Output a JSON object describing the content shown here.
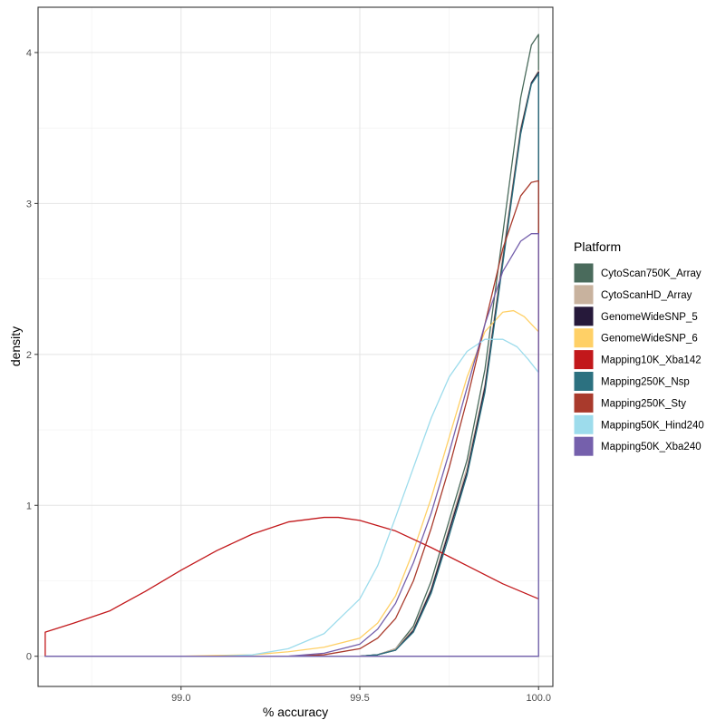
{
  "chart_data": {
    "type": "line",
    "xlabel": "% accuracy",
    "ylabel": "density",
    "xlim": [
      98.6,
      100.04
    ],
    "ylim": [
      -0.2,
      4.3
    ],
    "x_ticks": [
      99.0,
      99.5,
      100.0
    ],
    "x_tick_labels": [
      "99.0",
      "99.5",
      "100.0"
    ],
    "y_ticks": [
      0,
      1,
      2,
      3,
      4
    ],
    "y_tick_labels": [
      "0",
      "1",
      "2",
      "3",
      "4"
    ],
    "grid": true,
    "legend": {
      "title": "Platform",
      "position": "right"
    },
    "series": [
      {
        "name": "CytoScan750K_Array",
        "color": "#4a6b5c",
        "x": [
          98.62,
          99.5,
          99.55,
          99.6,
          99.65,
          99.7,
          99.75,
          99.8,
          99.85,
          99.9,
          99.95,
          99.98,
          100.0
        ],
        "y": [
          0,
          0,
          0.01,
          0.05,
          0.2,
          0.5,
          0.9,
          1.3,
          1.9,
          2.8,
          3.7,
          4.05,
          4.12
        ]
      },
      {
        "name": "CytoScanHD_Array",
        "color": "#c8b29e",
        "x": [
          98.62,
          99.5,
          99.55,
          99.6,
          99.65,
          99.7,
          99.75,
          99.8,
          99.85,
          99.9,
          99.95,
          99.98,
          100.0
        ],
        "y": [
          0,
          0,
          0.01,
          0.05,
          0.18,
          0.45,
          0.85,
          1.25,
          1.8,
          2.65,
          3.5,
          3.8,
          3.88
        ]
      },
      {
        "name": "GenomeWideSNP_5",
        "color": "#26193a",
        "x": [
          98.62,
          99.5,
          99.55,
          99.6,
          99.65,
          99.7,
          99.75,
          99.8,
          99.85,
          99.9,
          99.95,
          99.98,
          100.0
        ],
        "y": [
          0,
          0,
          0.01,
          0.04,
          0.17,
          0.44,
          0.83,
          1.22,
          1.78,
          2.62,
          3.48,
          3.8,
          3.87
        ]
      },
      {
        "name": "GenomeWideSNP_6",
        "color": "#ffd066",
        "x": [
          98.62,
          99.0,
          99.2,
          99.3,
          99.4,
          99.5,
          99.55,
          99.6,
          99.65,
          99.7,
          99.75,
          99.8,
          99.85,
          99.9,
          99.93,
          99.96,
          100.0
        ],
        "y": [
          0,
          0,
          0.01,
          0.03,
          0.06,
          0.12,
          0.22,
          0.4,
          0.7,
          1.05,
          1.45,
          1.85,
          2.15,
          2.28,
          2.29,
          2.25,
          2.15
        ]
      },
      {
        "name": "Mapping10K_Xba142",
        "color": "#c2181b",
        "x": [
          98.62,
          98.7,
          98.8,
          98.9,
          99.0,
          99.1,
          99.2,
          99.3,
          99.4,
          99.44,
          99.5,
          99.6,
          99.7,
          99.8,
          99.9,
          100.0
        ],
        "y": [
          0.16,
          0.22,
          0.3,
          0.43,
          0.57,
          0.7,
          0.81,
          0.89,
          0.92,
          0.92,
          0.9,
          0.83,
          0.72,
          0.6,
          0.48,
          0.38
        ]
      },
      {
        "name": "Mapping250K_Nsp",
        "color": "#2c7180",
        "x": [
          98.62,
          99.5,
          99.55,
          99.6,
          99.65,
          99.7,
          99.75,
          99.8,
          99.85,
          99.9,
          99.95,
          99.98,
          100.0
        ],
        "y": [
          0,
          0,
          0.01,
          0.04,
          0.16,
          0.42,
          0.8,
          1.2,
          1.75,
          2.6,
          3.46,
          3.79,
          3.86
        ]
      },
      {
        "name": "Mapping250K_Sty",
        "color": "#a93a2c",
        "x": [
          98.62,
          99.3,
          99.4,
          99.5,
          99.55,
          99.6,
          99.65,
          99.7,
          99.75,
          99.8,
          99.85,
          99.9,
          99.95,
          99.98,
          100.0
        ],
        "y": [
          0,
          0,
          0.01,
          0.05,
          0.12,
          0.25,
          0.5,
          0.85,
          1.25,
          1.7,
          2.2,
          2.7,
          3.05,
          3.14,
          3.15
        ]
      },
      {
        "name": "Mapping50K_Hind240",
        "color": "#9ddcec",
        "x": [
          98.62,
          99.1,
          99.2,
          99.3,
          99.4,
          99.5,
          99.55,
          99.6,
          99.65,
          99.7,
          99.75,
          99.8,
          99.85,
          99.9,
          99.94,
          99.97,
          100.0
        ],
        "y": [
          0,
          0,
          0.01,
          0.05,
          0.15,
          0.38,
          0.6,
          0.92,
          1.25,
          1.58,
          1.85,
          2.02,
          2.1,
          2.1,
          2.05,
          1.97,
          1.88
        ]
      },
      {
        "name": "Mapping50K_Xba240",
        "color": "#7560ac",
        "x": [
          98.62,
          99.3,
          99.4,
          99.5,
          99.55,
          99.6,
          99.65,
          99.7,
          99.75,
          99.8,
          99.85,
          99.9,
          99.95,
          99.98,
          100.0
        ],
        "y": [
          0,
          0,
          0.02,
          0.08,
          0.18,
          0.35,
          0.62,
          0.95,
          1.35,
          1.78,
          2.2,
          2.55,
          2.75,
          2.8,
          2.8
        ]
      }
    ]
  }
}
